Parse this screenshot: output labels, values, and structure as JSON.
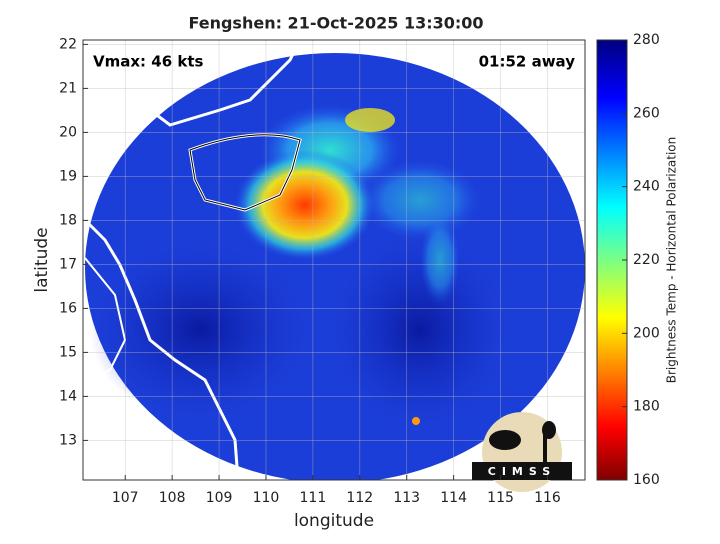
{
  "chart_data": {
    "type": "map",
    "title": "Fengshen: 21-Oct-2025 13:30:00",
    "annotations": [
      "Vmax: 46 kts",
      "01:52 away"
    ],
    "x_label": "longitude",
    "y_label": "latitude",
    "xlim": [
      106.1,
      116.8
    ],
    "ylim": [
      12.1,
      22.1
    ],
    "xticks": [
      107,
      108,
      109,
      110,
      111,
      112,
      113,
      114,
      115,
      116
    ],
    "yticks": [
      13,
      14,
      15,
      16,
      17,
      18,
      19,
      20,
      21,
      22
    ],
    "grid": true,
    "colorbar": {
      "label": "Brightness Temp - Horizontal Polarization",
      "lim": [
        160,
        280
      ],
      "ticks": [
        160,
        180,
        200,
        220,
        240,
        260,
        280
      ]
    },
    "logo": "CIMSS"
  }
}
